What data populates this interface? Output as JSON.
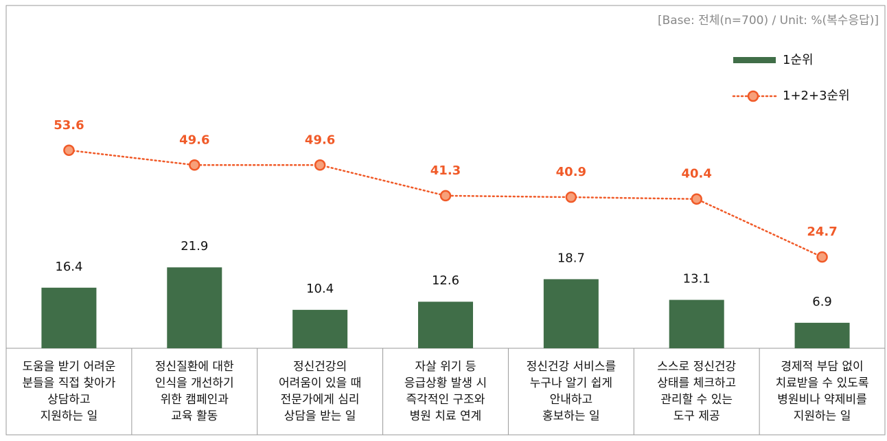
{
  "chart_data": {
    "type": "bar_line",
    "note": "[Base: 전체(n=700) / Unit: %(복수응답)]",
    "categories": [
      "도움을 받기 어려운\n분들을 직접 찾아가\n상담하고\n지원하는 일",
      "정신질환에 대한\n인식을 개선하기\n위한 캠페인과\n교육 활동",
      "정신건강의\n어려움이 있을 때\n전문가에게 심리\n상담을 받는 일",
      "자살 위기 등\n응급상황 발생 시\n즉각적인 구조와\n병원 치료 연계",
      "정신건강 서비스를\n누구나 알기 쉽게\n안내하고\n홍보하는 일",
      "스스로 정신건강\n상태를 체크하고\n관리할 수 있는\n도구 제공",
      "경제적 부담 없이\n치료받을 수 있도록\n병원비나 약제비를\n지원하는 일"
    ],
    "series": [
      {
        "name": "1순위",
        "type": "bar",
        "color": "#406e48",
        "values": [
          16.4,
          21.9,
          10.4,
          12.6,
          18.7,
          13.1,
          6.9
        ]
      },
      {
        "name": "1+2+3순위",
        "type": "line",
        "color": "#f05a28",
        "values": [
          53.6,
          49.6,
          49.6,
          41.3,
          40.9,
          40.4,
          24.7
        ]
      }
    ],
    "ylim": [
      0,
      90
    ]
  }
}
